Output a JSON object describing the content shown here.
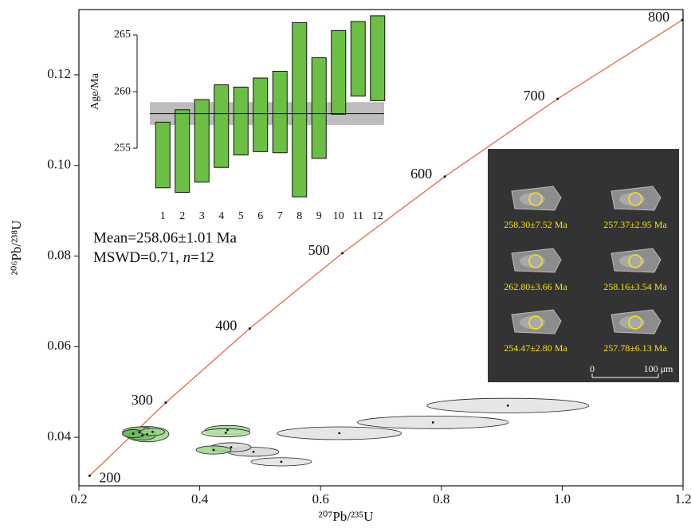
{
  "chart_data": [
    {
      "type": "concordia",
      "x_label": "²⁰⁷Pb/²³⁵U",
      "y_label": "²⁰⁶Pb/²³⁸U",
      "xlim": [
        0.2,
        1.2
      ],
      "xticks": [
        0.2,
        0.4,
        0.6,
        0.8,
        {
          "value": 1,
          "label": "1.0"
        },
        1.2
      ],
      "ylim": [
        0.0293,
        0.1344
      ],
      "yticks": [
        0.04,
        0.06,
        0.08,
        {
          "value": 0.1,
          "label": "0.10"
        },
        0.12
      ],
      "concordia": {
        "color": "#e07b5f",
        "ages": [
          200,
          300,
          400,
          500,
          600,
          700,
          800
        ],
        "x": [
          0.2177,
          0.3437,
          0.4828,
          0.6362,
          0.8057,
          0.9924,
          1.1988
        ],
        "y": [
          0.03151,
          0.04764,
          0.06402,
          0.08065,
          0.09754,
          0.1147,
          0.1321
        ]
      },
      "ellipses": [
        {
          "x": 0.91,
          "y": 0.047,
          "rx": 0.134,
          "ry": 0.0016,
          "color": "#e2e2e2"
        },
        {
          "x": 0.786,
          "y": 0.0433,
          "rx": 0.125,
          "ry": 0.0014,
          "color": "#e2e2e2"
        },
        {
          "x": 0.631,
          "y": 0.0409,
          "rx": 0.103,
          "ry": 0.0014,
          "color": "#e2e2e2"
        },
        {
          "x": 0.535,
          "y": 0.0346,
          "rx": 0.05,
          "ry": 0.0009,
          "color": "#e2e2e2"
        },
        {
          "x": 0.489,
          "y": 0.0368,
          "rx": 0.042,
          "ry": 0.001,
          "color": "#d6d6d6"
        },
        {
          "x": 0.452,
          "y": 0.0378,
          "rx": 0.033,
          "ry": 0.001,
          "color": "#d6d6d6"
        },
        {
          "x": 0.423,
          "y": 0.0372,
          "rx": 0.029,
          "ry": 0.0009,
          "color": "#9bd58a"
        },
        {
          "x": 0.446,
          "y": 0.0416,
          "rx": 0.037,
          "ry": 0.001,
          "color": "#9bd58a"
        },
        {
          "x": 0.443,
          "y": 0.041,
          "rx": 0.04,
          "ry": 0.0009,
          "color": "#b8e2a9"
        },
        {
          "x": 0.313,
          "y": 0.0407,
          "rx": 0.036,
          "ry": 0.0017,
          "color": "#9bd58a"
        },
        {
          "x": 0.3,
          "y": 0.0411,
          "rx": 0.028,
          "ry": 0.0012,
          "color": "#8ccb78"
        },
        {
          "x": 0.305,
          "y": 0.0404,
          "rx": 0.022,
          "ry": 0.001,
          "color": "#7fc46a"
        },
        {
          "x": 0.29,
          "y": 0.0408,
          "rx": 0.018,
          "ry": 0.0009,
          "color": "#6db85a"
        },
        {
          "x": 0.322,
          "y": 0.0412,
          "rx": 0.02,
          "ry": 0.0008,
          "color": "#9bd58a"
        }
      ]
    },
    {
      "type": "floating_bar",
      "y_label": "Age/Ma",
      "categories": [
        "1",
        "2",
        "3",
        "4",
        "5",
        "6",
        "7",
        "8",
        "9",
        "10",
        "11",
        "12"
      ],
      "low": [
        251.5,
        251.1,
        252.0,
        253.3,
        254.4,
        254.7,
        254.6,
        250.7,
        254.1,
        258.0,
        259.6,
        259.2
      ],
      "high": [
        257.3,
        258.4,
        259.3,
        260.6,
        260.4,
        261.2,
        261.8,
        266.1,
        263.0,
        265.4,
        266.2,
        266.7
      ],
      "color": "#6cbf45",
      "ylim": [
        250.5,
        267
      ],
      "yticks": [
        255,
        260,
        265
      ],
      "mean": 258.06,
      "mean_error": 1.01,
      "band_color": "#bdbdbd",
      "mean_label": "Mean=258.06±1.01 Ma",
      "mswd_label": [
        "MSWD=0.71, ",
        "n",
        "=12"
      ]
    }
  ],
  "cl_panel": {
    "spots": [
      "258.30±7.52 Ma",
      "257.37±2.95 Ma",
      "262.80±3.66 Ma",
      "258.16±3.54 Ma",
      "254.47±2.80 Ma",
      "257.78±6.13 Ma"
    ],
    "scale_bar": [
      "0",
      "100 μm"
    ]
  }
}
